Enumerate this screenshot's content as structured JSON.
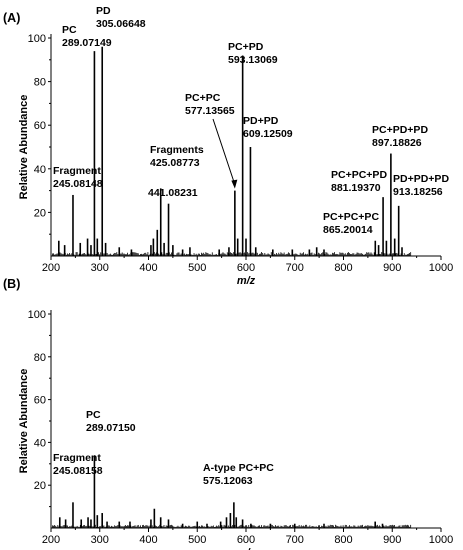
{
  "chart_data": [
    {
      "type": "line",
      "panel_label": "(A)",
      "xlabel": "m/z",
      "ylabel": "Relative Abundance",
      "xlim": [
        200,
        1000
      ],
      "ylim": [
        0,
        100
      ],
      "x_ticks": [
        200,
        300,
        400,
        500,
        600,
        700,
        800,
        900,
        1000
      ],
      "y_ticks": [
        20,
        40,
        60,
        80,
        100
      ],
      "peaks": [
        {
          "x": 216,
          "y": 7
        },
        {
          "x": 228,
          "y": 5
        },
        {
          "x": 245.08148,
          "y": 28
        },
        {
          "x": 260,
          "y": 6
        },
        {
          "x": 275,
          "y": 8
        },
        {
          "x": 282,
          "y": 5
        },
        {
          "x": 289.07149,
          "y": 94
        },
        {
          "x": 295,
          "y": 8
        },
        {
          "x": 305.06648,
          "y": 96
        },
        {
          "x": 312,
          "y": 6
        },
        {
          "x": 340,
          "y": 4
        },
        {
          "x": 365,
          "y": 3
        },
        {
          "x": 405,
          "y": 5
        },
        {
          "x": 410,
          "y": 8
        },
        {
          "x": 418,
          "y": 12
        },
        {
          "x": 425.08773,
          "y": 31
        },
        {
          "x": 432,
          "y": 6
        },
        {
          "x": 441.08231,
          "y": 24
        },
        {
          "x": 450,
          "y": 5
        },
        {
          "x": 470,
          "y": 3
        },
        {
          "x": 485,
          "y": 4
        },
        {
          "x": 545,
          "y": 3
        },
        {
          "x": 565,
          "y": 4
        },
        {
          "x": 577.13565,
          "y": 30
        },
        {
          "x": 583,
          "y": 8
        },
        {
          "x": 593.13069,
          "y": 92
        },
        {
          "x": 600,
          "y": 8
        },
        {
          "x": 609.12509,
          "y": 50
        },
        {
          "x": 620,
          "y": 4
        },
        {
          "x": 655,
          "y": 3
        },
        {
          "x": 695,
          "y": 3
        },
        {
          "x": 730,
          "y": 3
        },
        {
          "x": 745,
          "y": 4
        },
        {
          "x": 760,
          "y": 3
        },
        {
          "x": 865.20014,
          "y": 7
        },
        {
          "x": 872,
          "y": 5
        },
        {
          "x": 881.1937,
          "y": 27
        },
        {
          "x": 888,
          "y": 7
        },
        {
          "x": 897.18826,
          "y": 47
        },
        {
          "x": 905,
          "y": 8
        },
        {
          "x": 913.18256,
          "y": 23
        },
        {
          "x": 920,
          "y": 4
        }
      ],
      "annotations": [
        {
          "lines": [
            "PC",
            "289.07149"
          ],
          "x": 289.07149,
          "y": 94
        },
        {
          "lines": [
            "PD",
            "305.06648"
          ],
          "x": 305.06648,
          "y": 96
        },
        {
          "lines": [
            "Fragment",
            "245.08148"
          ],
          "x": 245.08148,
          "y": 28
        },
        {
          "lines": [
            "Fragments",
            "425.08773"
          ],
          "x": 425.08773,
          "y": 31
        },
        {
          "lines": [
            "441.08231"
          ],
          "x": 441.08231,
          "y": 24
        },
        {
          "lines": [
            "PC+PC",
            "577.13565"
          ],
          "x": 577.13565,
          "y": 30
        },
        {
          "lines": [
            "PC+PD",
            "593.13069"
          ],
          "x": 593.13069,
          "y": 92
        },
        {
          "lines": [
            "PD+PD",
            "609.12509"
          ],
          "x": 609.12509,
          "y": 50
        },
        {
          "lines": [
            "PC+PC+PC",
            "865.20014"
          ],
          "x": 865.20014,
          "y": 7
        },
        {
          "lines": [
            "PC+PC+PD",
            "881.19370"
          ],
          "x": 881.1937,
          "y": 27
        },
        {
          "lines": [
            "PC+PD+PD",
            "897.18826"
          ],
          "x": 897.18826,
          "y": 47
        },
        {
          "lines": [
            "PD+PD+PD",
            "913.18256"
          ],
          "x": 913.18256,
          "y": 23
        }
      ]
    },
    {
      "type": "line",
      "panel_label": "(B)",
      "xlabel": "m/z",
      "ylabel": "Relative Abundance",
      "xlim": [
        200,
        1000
      ],
      "ylim": [
        0,
        100
      ],
      "x_ticks": [
        200,
        300,
        400,
        500,
        600,
        700,
        800,
        900,
        1000
      ],
      "y_ticks": [
        20,
        40,
        60,
        80,
        100
      ],
      "peaks": [
        {
          "x": 218,
          "y": 5
        },
        {
          "x": 230,
          "y": 4
        },
        {
          "x": 245.08158,
          "y": 12
        },
        {
          "x": 262,
          "y": 4
        },
        {
          "x": 276,
          "y": 5
        },
        {
          "x": 282,
          "y": 4
        },
        {
          "x": 289.0715,
          "y": 34
        },
        {
          "x": 295,
          "y": 6
        },
        {
          "x": 305,
          "y": 7
        },
        {
          "x": 315,
          "y": 3
        },
        {
          "x": 340,
          "y": 3
        },
        {
          "x": 362,
          "y": 3
        },
        {
          "x": 405,
          "y": 4
        },
        {
          "x": 412,
          "y": 9
        },
        {
          "x": 425,
          "y": 5
        },
        {
          "x": 441,
          "y": 4
        },
        {
          "x": 470,
          "y": 2
        },
        {
          "x": 500,
          "y": 3
        },
        {
          "x": 520,
          "y": 2
        },
        {
          "x": 548,
          "y": 3
        },
        {
          "x": 560,
          "y": 5
        },
        {
          "x": 568,
          "y": 7
        },
        {
          "x": 575.12063,
          "y": 12
        },
        {
          "x": 580,
          "y": 5
        },
        {
          "x": 593,
          "y": 4
        },
        {
          "x": 610,
          "y": 2
        },
        {
          "x": 650,
          "y": 2
        },
        {
          "x": 700,
          "y": 2
        },
        {
          "x": 760,
          "y": 2
        },
        {
          "x": 865,
          "y": 3
        },
        {
          "x": 880,
          "y": 2
        }
      ],
      "annotations": [
        {
          "lines": [
            "PC",
            "289.07150"
          ],
          "x": 289.0715,
          "y": 34
        },
        {
          "lines": [
            "Fragment",
            "245.08158"
          ],
          "x": 245.08158,
          "y": 12
        },
        {
          "lines": [
            "A-type PC+PC",
            "575.12063"
          ],
          "x": 575.12063,
          "y": 12
        }
      ]
    }
  ]
}
